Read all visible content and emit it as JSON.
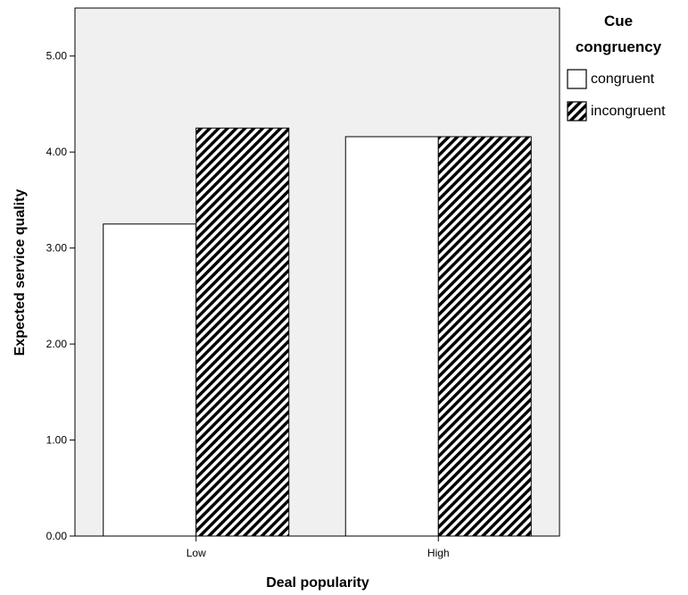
{
  "chart_data": {
    "type": "bar",
    "title": "",
    "xlabel": "Deal popularity",
    "ylabel": "Expected service quality",
    "categories": [
      "Low",
      "High"
    ],
    "series": [
      {
        "name": "congruent",
        "values": [
          3.25,
          4.16
        ],
        "fill": "#ffffff",
        "pattern": "none"
      },
      {
        "name": "incongruent",
        "values": [
          4.25,
          4.16
        ],
        "fill": "#ffffff",
        "pattern": "diagonal-hatch"
      }
    ],
    "ylim": [
      0,
      5.5
    ],
    "yticks": [
      0,
      1,
      2,
      3,
      4,
      5
    ],
    "ytick_labels": [
      "0.00",
      "1.00",
      "2.00",
      "3.00",
      "4.00",
      "5.00"
    ],
    "legend": {
      "title_line1": "Cue",
      "title_line2": "congruency",
      "position": "right"
    },
    "grid": false,
    "plot_background": "#f0f0f0"
  }
}
